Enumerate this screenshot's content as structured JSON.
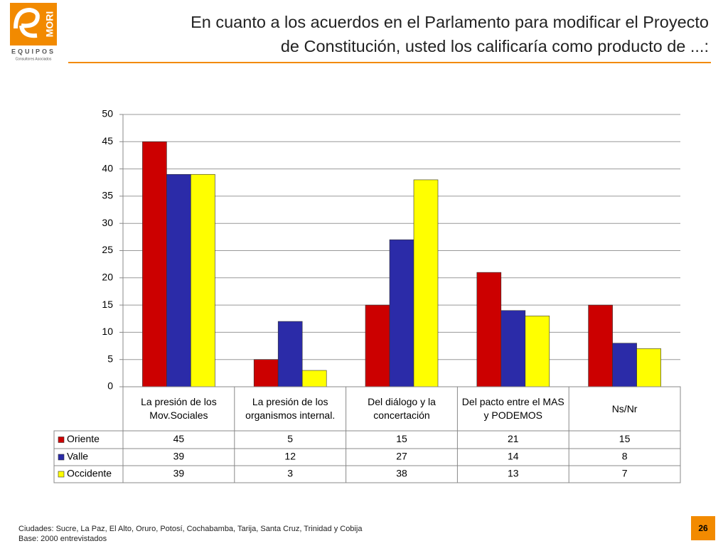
{
  "logo": {
    "brand": "MORI",
    "name": "EQUIPOS",
    "tagline": "Consultores Asociados"
  },
  "chart_data": {
    "type": "bar",
    "title": [
      "En cuanto a los acuerdos en el Parlamento para modificar el Proyecto",
      "de Constitución, usted los calificaría como producto de ...:"
    ],
    "categories": [
      "La presión de los Mov.Sociales",
      "La presión de los organismos internal.",
      "Del diálogo y la concertación",
      "Del pacto entre el MAS y PODEMOS",
      "Ns/Nr"
    ],
    "series": [
      {
        "name": "Oriente",
        "color": "#cc0000",
        "values": [
          45,
          5,
          15,
          21,
          15
        ]
      },
      {
        "name": "Valle",
        "color": "#2b2ba8",
        "values": [
          39,
          12,
          27,
          14,
          8
        ]
      },
      {
        "name": "Occidente",
        "color": "#ffff00",
        "values": [
          39,
          3,
          38,
          13,
          7
        ]
      }
    ],
    "ylim": [
      0,
      50
    ],
    "yticks": [
      0,
      5,
      10,
      15,
      20,
      25,
      30,
      35,
      40,
      45,
      50
    ],
    "grid": true,
    "notes": [
      "Ciudades: Sucre, La Paz, El Alto, Oruro, Potosí, Cochabamba, Tarija, Santa Cruz, Trinidad y Cobija",
      "Base: 2000 entrevistados"
    ],
    "page": 26
  }
}
